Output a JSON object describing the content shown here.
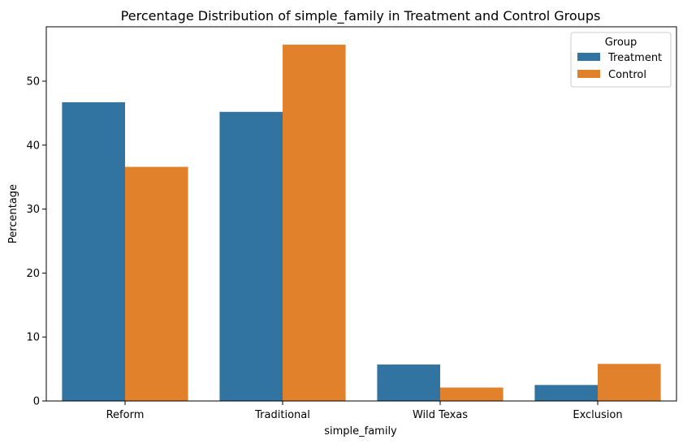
{
  "chart_data": {
    "type": "bar",
    "title": "Percentage Distribution of simple_family in Treatment and Control Groups",
    "xlabel": "simple_family",
    "ylabel": "Percentage",
    "categories": [
      "Reform",
      "Traditional",
      "Wild Texas",
      "Exclusion"
    ],
    "series": [
      {
        "name": "Treatment",
        "color": "#3274a1",
        "values": [
          46.7,
          45.2,
          5.7,
          2.5
        ]
      },
      {
        "name": "Control",
        "color": "#e1812c",
        "values": [
          36.6,
          55.7,
          2.1,
          5.8
        ]
      }
    ],
    "ylim": [
      0,
      58.5
    ],
    "yticks": [
      0,
      10,
      20,
      30,
      40,
      50
    ],
    "legend": {
      "title": "Group",
      "placement": "top-right"
    },
    "grid": false
  }
}
